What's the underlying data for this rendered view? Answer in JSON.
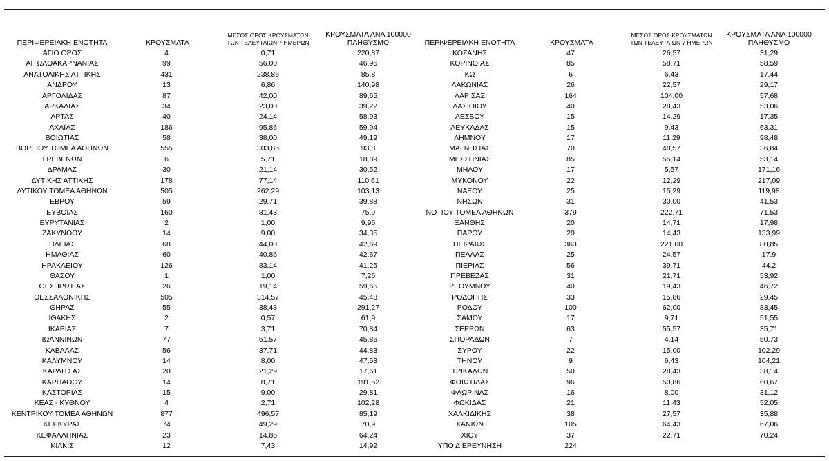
{
  "headers": {
    "region": "ΠΕΡΙΦΕΡΕΙΑΚΗ ΕΝΟΤΗΤΑ",
    "cases": "ΚΡΟΥΣΜΑΤΑ",
    "avg_line1": "ΜΕΣΟΣ ΟΡΟΣ ΚΡΟΥΣΜΑΤΩΝ",
    "avg_line2": "ΤΩΝ ΤΕΛΕΥΤΑΙΩΝ 7 ΗΜΕΡΩΝ",
    "rate_line1": "ΚΡΟΥΣΜΑΤΑ ΑΝΑ 100000",
    "rate_line2": "ΠΛΗΘΥΣΜΟ"
  },
  "left_rows": [
    {
      "name": "ΑΓΙΟ ΟΡΟΣ",
      "cases": "4",
      "avg": "0,71",
      "rate": "220,87"
    },
    {
      "name": "ΑΙΤΩΛΟΑΚΑΡΝΑΝΙΑΣ",
      "cases": "99",
      "avg": "56,00",
      "rate": "46,96"
    },
    {
      "name": "ΑΝΑΤΟΛΙΚΗΣ ΑΤΤΙΚΗΣ",
      "cases": "431",
      "avg": "238,86",
      "rate": "85,8"
    },
    {
      "name": "ΑΝΔΡΟΥ",
      "cases": "13",
      "avg": "6,86",
      "rate": "140,98"
    },
    {
      "name": "ΑΡΓΟΛΙΔΑΣ",
      "cases": "87",
      "avg": "42,00",
      "rate": "89,65"
    },
    {
      "name": "ΑΡΚΑΔΙΑΣ",
      "cases": "34",
      "avg": "23,00",
      "rate": "39,22"
    },
    {
      "name": "ΑΡΤΑΣ",
      "cases": "40",
      "avg": "24,14",
      "rate": "58,93"
    },
    {
      "name": "ΑΧΑΪΑΣ",
      "cases": "186",
      "avg": "95,86",
      "rate": "59,94"
    },
    {
      "name": "ΒΟΙΩΤΙΑΣ",
      "cases": "58",
      "avg": "38,00",
      "rate": "49,19"
    },
    {
      "name": "ΒΟΡΕΙΟΥ ΤΟΜΕΑ ΑΘΗΝΩΝ",
      "cases": "555",
      "avg": "303,86",
      "rate": "93,8"
    },
    {
      "name": "ΓΡΕΒΕΝΩΝ",
      "cases": "6",
      "avg": "5,71",
      "rate": "18,89"
    },
    {
      "name": "ΔΡΑΜΑΣ",
      "cases": "30",
      "avg": "21,14",
      "rate": "30,52"
    },
    {
      "name": "ΔΥΤΙΚΗΣ ΑΤΤΙΚΗΣ",
      "cases": "178",
      "avg": "77,14",
      "rate": "110,61"
    },
    {
      "name": "ΔΥΤΙΚΟΥ ΤΟΜΕΑ ΑΘΗΝΩΝ",
      "cases": "505",
      "avg": "262,29",
      "rate": "103,13"
    },
    {
      "name": "ΕΒΡΟΥ",
      "cases": "59",
      "avg": "29,71",
      "rate": "39,88"
    },
    {
      "name": "ΕΥΒΟΙΑΣ",
      "cases": "160",
      "avg": "81,43",
      "rate": "75,9"
    },
    {
      "name": "ΕΥΡΥΤΑΝΙΑΣ",
      "cases": "2",
      "avg": "1,00",
      "rate": "9,96"
    },
    {
      "name": "ΖΑΚΥΝΘΟΥ",
      "cases": "14",
      "avg": "9,00",
      "rate": "34,35"
    },
    {
      "name": "ΗΛΕΙΑΣ",
      "cases": "68",
      "avg": "44,00",
      "rate": "42,69"
    },
    {
      "name": "ΗΜΑΘΙΑΣ",
      "cases": "60",
      "avg": "40,86",
      "rate": "42,67"
    },
    {
      "name": "ΗΡΑΚΛΕΙΟΥ",
      "cases": "126",
      "avg": "83,14",
      "rate": "41,25"
    },
    {
      "name": "ΘΑΣΟΥ",
      "cases": "1",
      "avg": "1,00",
      "rate": "7,26"
    },
    {
      "name": "ΘΕΣΠΡΩΤΙΑΣ",
      "cases": "26",
      "avg": "19,14",
      "rate": "59,65"
    },
    {
      "name": "ΘΕΣΣΑΛΟΝΙΚΗΣ",
      "cases": "505",
      "avg": "314,57",
      "rate": "45,48"
    },
    {
      "name": "ΘΗΡΑΣ",
      "cases": "55",
      "avg": "38,43",
      "rate": "291,27"
    },
    {
      "name": "ΙΘΑΚΗΣ",
      "cases": "2",
      "avg": "0,57",
      "rate": "61,9"
    },
    {
      "name": "ΙΚΑΡΙΑΣ",
      "cases": "7",
      "avg": "3,71",
      "rate": "70,84"
    },
    {
      "name": "ΙΩΑΝΝΙΝΩΝ",
      "cases": "77",
      "avg": "51,57",
      "rate": "45,86"
    },
    {
      "name": "ΚΑΒΑΛΑΣ",
      "cases": "56",
      "avg": "37,71",
      "rate": "44,83"
    },
    {
      "name": "ΚΑΛΥΜΝΟΥ",
      "cases": "14",
      "avg": "8,00",
      "rate": "47,53"
    },
    {
      "name": "ΚΑΡΔΙΤΣΑΣ",
      "cases": "20",
      "avg": "21,29",
      "rate": "17,61"
    },
    {
      "name": "ΚΑΡΠΑΘΟΥ",
      "cases": "14",
      "avg": "8,71",
      "rate": "191,52"
    },
    {
      "name": "ΚΑΣΤΟΡΙΑΣ",
      "cases": "15",
      "avg": "9,00",
      "rate": "29,81"
    },
    {
      "name": "ΚΕΑΣ - ΚΥΘΝΟΥ",
      "cases": "4",
      "avg": "2,71",
      "rate": "102,28"
    },
    {
      "name": "ΚΕΝΤΡΙΚΟΥ ΤΟΜΕΑ ΑΘΗΝΩΝ",
      "cases": "877",
      "avg": "496,57",
      "rate": "85,19"
    },
    {
      "name": "ΚΕΡΚΥΡΑΣ",
      "cases": "74",
      "avg": "49,29",
      "rate": "70,9"
    },
    {
      "name": "ΚΕΦΑΛΛΗΝΙΑΣ",
      "cases": "23",
      "avg": "14,86",
      "rate": "64,24"
    },
    {
      "name": "ΚΙΛΚΙΣ",
      "cases": "12",
      "avg": "7,43",
      "rate": "14,92"
    }
  ],
  "right_rows": [
    {
      "name": "ΚΟΖΑΝΗΣ",
      "cases": "47",
      "avg": "26,57",
      "rate": "31,29"
    },
    {
      "name": "ΚΟΡΙΝΘΙΑΣ",
      "cases": "85",
      "avg": "58,71",
      "rate": "58,59"
    },
    {
      "name": "ΚΩ",
      "cases": "6",
      "avg": "6,43",
      "rate": "17,44"
    },
    {
      "name": "ΛΑΚΩΝΙΑΣ",
      "cases": "26",
      "avg": "22,57",
      "rate": "29,17"
    },
    {
      "name": "ΛΑΡΙΣΑΣ",
      "cases": "164",
      "avg": "104,00",
      "rate": "57,68"
    },
    {
      "name": "ΛΑΣΙΘΙΟΥ",
      "cases": "40",
      "avg": "28,43",
      "rate": "53,06"
    },
    {
      "name": "ΛΕΣΒΟΥ",
      "cases": "15",
      "avg": "14,29",
      "rate": "17,35"
    },
    {
      "name": "ΛΕΥΚΑΔΑΣ",
      "cases": "15",
      "avg": "9,43",
      "rate": "63,31"
    },
    {
      "name": "ΛΗΜΝΟΥ",
      "cases": "17",
      "avg": "11,29",
      "rate": "98,48"
    },
    {
      "name": "ΜΑΓΝΗΣΙΑΣ",
      "cases": "70",
      "avg": "48,57",
      "rate": "36,84"
    },
    {
      "name": "ΜΕΣΣΗΝΙΑΣ",
      "cases": "85",
      "avg": "55,14",
      "rate": "53,14"
    },
    {
      "name": "ΜΗΛΟΥ",
      "cases": "17",
      "avg": "5,57",
      "rate": "171,16"
    },
    {
      "name": "ΜΥΚΟΝΟΥ",
      "cases": "22",
      "avg": "12,29",
      "rate": "217,09"
    },
    {
      "name": "ΝΑΞΟΥ",
      "cases": "25",
      "avg": "15,29",
      "rate": "119,98"
    },
    {
      "name": "ΝΗΣΩΝ",
      "cases": "31",
      "avg": "30,00",
      "rate": "41,53"
    },
    {
      "name": "ΝΟΤΙΟΥ ΤΟΜΕΑ ΑΘΗΝΩΝ",
      "cases": "379",
      "avg": "222,71",
      "rate": "71,53"
    },
    {
      "name": "ΞΑΝΘΗΣ",
      "cases": "20",
      "avg": "14,71",
      "rate": "17,98"
    },
    {
      "name": "ΠΑΡΟΥ",
      "cases": "20",
      "avg": "14,43",
      "rate": "133,99"
    },
    {
      "name": "ΠΕΙΡΑΙΩΣ",
      "cases": "363",
      "avg": "221,00",
      "rate": "80,85"
    },
    {
      "name": "ΠΕΛΛΑΣ",
      "cases": "25",
      "avg": "24,57",
      "rate": "17,9"
    },
    {
      "name": "ΠΙΕΡΙΑΣ",
      "cases": "56",
      "avg": "39,71",
      "rate": "44,2"
    },
    {
      "name": "ΠΡΕΒΕΖΑΣ",
      "cases": "31",
      "avg": "21,71",
      "rate": "53,92"
    },
    {
      "name": "ΡΕΘΥΜΝΟΥ",
      "cases": "40",
      "avg": "19,43",
      "rate": "46,72"
    },
    {
      "name": "ΡΟΔΟΠΗΣ",
      "cases": "33",
      "avg": "15,86",
      "rate": "29,45"
    },
    {
      "name": "ΡΟΔΟΥ",
      "cases": "100",
      "avg": "62,00",
      "rate": "83,45"
    },
    {
      "name": "ΣΑΜΟΥ",
      "cases": "17",
      "avg": "9,71",
      "rate": "51,55"
    },
    {
      "name": "ΣΕΡΡΩΝ",
      "cases": "63",
      "avg": "55,57",
      "rate": "35,71"
    },
    {
      "name": "ΣΠΟΡΑΔΩΝ",
      "cases": "7",
      "avg": "4,14",
      "rate": "50,73"
    },
    {
      "name": "ΣΥΡΟΥ",
      "cases": "22",
      "avg": "15,00",
      "rate": "102,29"
    },
    {
      "name": "ΤΗΝΟΥ",
      "cases": "9",
      "avg": "6,43",
      "rate": "104,21"
    },
    {
      "name": "ΤΡΙΚΑΛΩΝ",
      "cases": "50",
      "avg": "28,43",
      "rate": "38,14"
    },
    {
      "name": "ΦΘΙΩΤΙΔΑΣ",
      "cases": "96",
      "avg": "50,86",
      "rate": "60,67"
    },
    {
      "name": "ΦΛΩΡΙΝΑΣ",
      "cases": "16",
      "avg": "8,00",
      "rate": "31,12"
    },
    {
      "name": "ΦΩΚΙΔΑΣ",
      "cases": "21",
      "avg": "11,43",
      "rate": "52,05"
    },
    {
      "name": "ΧΑΛΚΙΔΙΚΗΣ",
      "cases": "38",
      "avg": "27,57",
      "rate": "35,88"
    },
    {
      "name": "ΧΑΝΙΩΝ",
      "cases": "105",
      "avg": "64,43",
      "rate": "67,06"
    },
    {
      "name": "ΧΙΟΥ",
      "cases": "37",
      "avg": "22,71",
      "rate": "70,24"
    },
    {
      "name": "ΥΠΟ ΔΙΕΡΕΥΝΗΣΗ",
      "cases": "224",
      "avg": "",
      "rate": ""
    }
  ]
}
